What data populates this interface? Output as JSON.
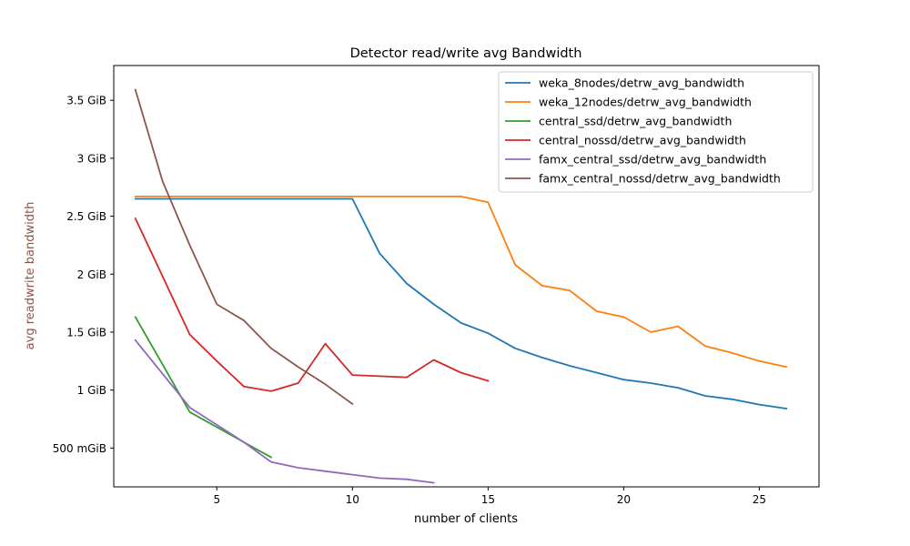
{
  "chart_data": {
    "type": "line",
    "title": "Detector read/write avg Bandwidth",
    "xlabel": "number of clients",
    "ylabel": "avg readwrite bandwidth",
    "ylabel_color": "#8c564b",
    "xlim": [
      1.2,
      27.2
    ],
    "ylim": [
      0.165,
      3.8
    ],
    "xticks": [
      5,
      10,
      15,
      20,
      25
    ],
    "xtick_labels": [
      "5",
      "10",
      "15",
      "20",
      "25"
    ],
    "yticks": [
      0.5,
      1,
      1.5,
      2,
      2.5,
      3,
      3.5
    ],
    "ytick_labels": [
      "500 mGiB",
      "1 GiB",
      "1.5 GiB",
      "2 GiB",
      "2.5 GiB",
      "3 GiB",
      "3.5 GiB"
    ],
    "grid": false,
    "legend_position": "top-right",
    "series": [
      {
        "name": "weka_8nodes/detrw_avg_bandwidth",
        "color": "#1f77b4",
        "x": [
          2,
          3,
          4,
          5,
          6,
          7,
          8,
          9,
          10,
          11,
          12,
          13,
          14,
          15,
          16,
          17,
          18,
          19,
          20,
          21,
          22,
          23,
          24,
          25,
          26
        ],
        "y": [
          2.65,
          2.65,
          2.65,
          2.65,
          2.65,
          2.65,
          2.65,
          2.65,
          2.65,
          2.18,
          1.92,
          1.74,
          1.58,
          1.49,
          1.36,
          1.28,
          1.21,
          1.15,
          1.09,
          1.06,
          1.02,
          0.95,
          0.92,
          0.875,
          0.84
        ]
      },
      {
        "name": "weka_12nodes/detrw_avg_bandwidth",
        "color": "#ff7f0e",
        "x": [
          2,
          3,
          4,
          5,
          6,
          7,
          8,
          9,
          10,
          11,
          12,
          13,
          14,
          15,
          16,
          17,
          18,
          19,
          20,
          21,
          22,
          23,
          24,
          25,
          26
        ],
        "y": [
          2.67,
          2.67,
          2.67,
          2.67,
          2.67,
          2.67,
          2.67,
          2.67,
          2.67,
          2.67,
          2.67,
          2.67,
          2.67,
          2.62,
          2.08,
          1.9,
          1.86,
          1.68,
          1.63,
          1.5,
          1.55,
          1.38,
          1.32,
          1.25,
          1.2
        ]
      },
      {
        "name": "central_ssd/detrw_avg_bandwidth",
        "color": "#2ca02c",
        "x": [
          2,
          3,
          4,
          5,
          6,
          7
        ],
        "y": [
          1.63,
          1.22,
          0.81,
          0.68,
          0.55,
          0.42
        ]
      },
      {
        "name": "central_nossd/detrw_avg_bandwidth",
        "color": "#d62728",
        "x": [
          2,
          3,
          4,
          5,
          6,
          7,
          8,
          9,
          10,
          11,
          12,
          13,
          14,
          15
        ],
        "y": [
          2.48,
          1.98,
          1.48,
          1.25,
          1.03,
          0.99,
          1.06,
          1.4,
          1.13,
          1.12,
          1.11,
          1.26,
          1.15,
          1.08
        ]
      },
      {
        "name": "famx_central_ssd/detrw_avg_bandwidth",
        "color": "#9467bd",
        "x": [
          2,
          3,
          4,
          5,
          6,
          7,
          8,
          9,
          10,
          11,
          12,
          13
        ],
        "y": [
          1.43,
          1.14,
          0.85,
          0.7,
          0.55,
          0.38,
          0.33,
          0.3,
          0.27,
          0.24,
          0.23,
          0.2
        ]
      },
      {
        "name": "famx_central_nossd/detrw_avg_bandwidth",
        "color": "#8c564b",
        "x": [
          2,
          3,
          4,
          5,
          6,
          7,
          8,
          9,
          10
        ],
        "y": [
          3.59,
          2.8,
          2.25,
          1.74,
          1.6,
          1.36,
          1.2,
          1.05,
          0.88
        ]
      }
    ]
  }
}
